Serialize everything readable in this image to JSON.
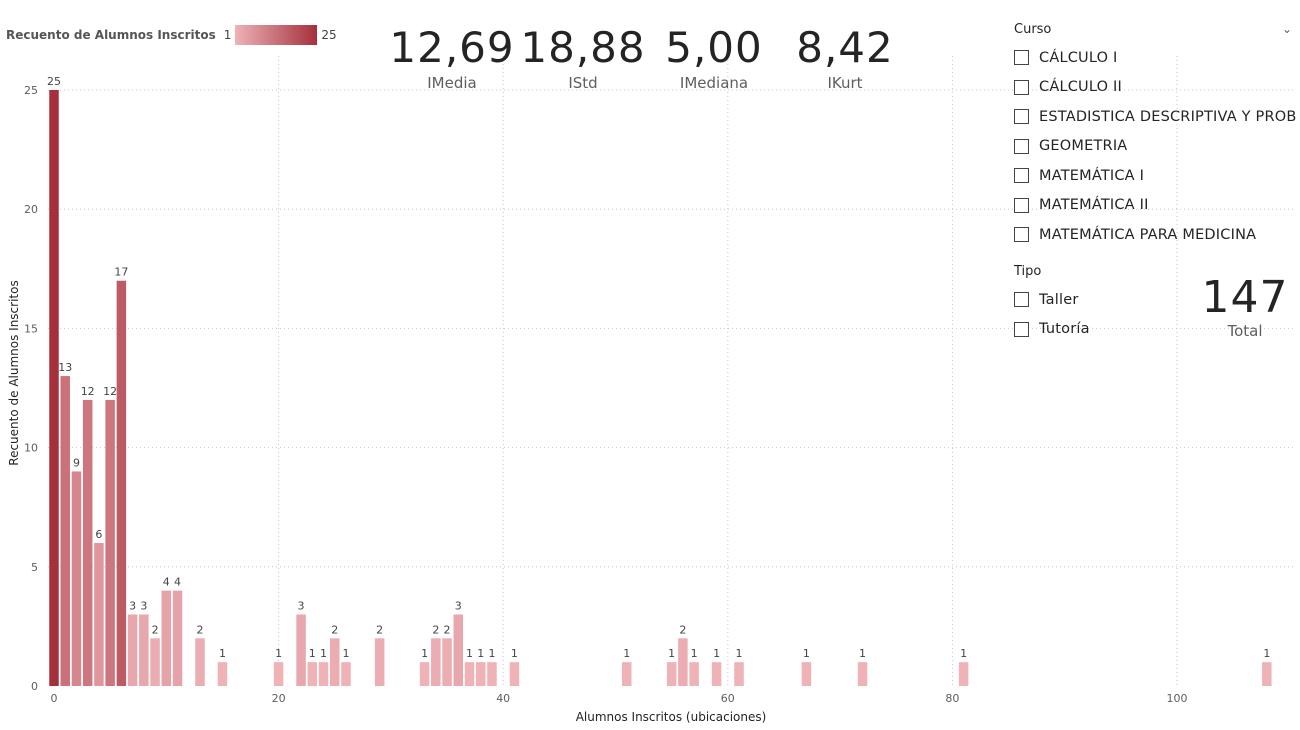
{
  "legend": {
    "title": "Recuento de Alumnos Inscritos",
    "min": "1",
    "max": "25"
  },
  "kpis": [
    {
      "value": "12,69",
      "label": "IMedia"
    },
    {
      "value": "18,88",
      "label": "IStd"
    },
    {
      "value": "5,00",
      "label": "IMediana"
    },
    {
      "value": "8,42",
      "label": "IKurt"
    }
  ],
  "slicer_curso": {
    "title": "Curso",
    "items": [
      "CÁLCULO I",
      "CÁLCULO II",
      "ESTADISTICA DESCRIPTIVA Y PROB",
      "GEOMETRIA",
      "MATEMÁTICA I",
      "MATEMÁTICA II",
      "MATEMÁTICA PARA MEDICINA"
    ]
  },
  "slicer_tipo": {
    "title": "Tipo",
    "items": [
      "Taller",
      "Tutoría"
    ]
  },
  "total": {
    "value": "147",
    "label": "Total"
  },
  "colors": {
    "low": "#eeb2b7",
    "high": "#a5303c",
    "grid": "#c8c6c4"
  },
  "chart_data": {
    "type": "bar",
    "xlabel": "Alumnos Inscritos (ubicaciones)",
    "ylabel": "Recuento de Alumnos Inscritos",
    "xlim": [
      0,
      110
    ],
    "ylim": [
      0,
      25
    ],
    "xticks": [
      0,
      20,
      40,
      60,
      80,
      100
    ],
    "yticks": [
      0,
      5,
      10,
      15,
      20,
      25
    ],
    "grid": true,
    "x": [
      0,
      1,
      2,
      3,
      4,
      5,
      6,
      7,
      8,
      9,
      10,
      11,
      13,
      15,
      20,
      22,
      23,
      24,
      25,
      26,
      29,
      33,
      34,
      35,
      36,
      37,
      38,
      39,
      41,
      51,
      55,
      56,
      57,
      59,
      61,
      67,
      72,
      81,
      108
    ],
    "values": [
      25,
      13,
      9,
      12,
      6,
      12,
      17,
      3,
      3,
      2,
      4,
      4,
      2,
      1,
      1,
      3,
      1,
      1,
      2,
      1,
      2,
      1,
      2,
      2,
      3,
      1,
      1,
      1,
      1,
      1,
      1,
      2,
      1,
      1,
      1,
      1,
      1,
      1,
      1
    ]
  }
}
